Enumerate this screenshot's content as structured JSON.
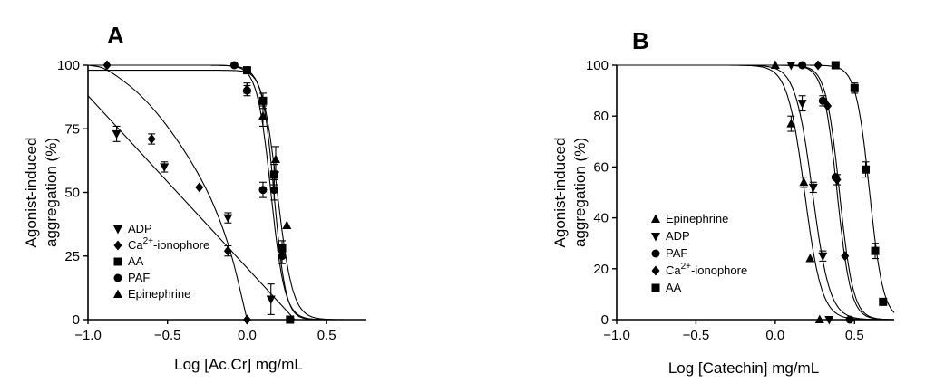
{
  "chart_data": [
    {
      "panel": "A",
      "type": "scatter",
      "xlabel": "Log [Ac.Cr] mg/mL",
      "ylabel": [
        "Agonist-induced",
        "aggregation (%)"
      ],
      "xlim": [
        -1.0,
        0.75
      ],
      "ylim": [
        0,
        100
      ],
      "xticks": [
        -1.0,
        -0.5,
        0.0,
        0.5
      ],
      "xtick_labels": [
        "−1.0",
        "−0.5",
        "0.0",
        "0.5"
      ],
      "yticks": [
        0,
        25,
        50,
        75,
        100
      ],
      "ytick_labels": [
        "0",
        "25",
        "50",
        "75",
        "100"
      ],
      "legend_position": "bottom-left",
      "series": [
        {
          "name": "ADP",
          "marker": "triangle-down",
          "x": [
            -0.82,
            -0.52,
            -0.12,
            0.15
          ],
          "y": [
            73,
            60,
            40,
            8
          ],
          "err": [
            3,
            2,
            2,
            6
          ],
          "curve": {
            "type": "line",
            "x": [
              -1.0,
              0.3
            ],
            "y": [
              88,
              0
            ]
          }
        },
        {
          "name": "Ca2+-ionophore",
          "name_parts": [
            "Ca",
            "2+",
            "-ionophore"
          ],
          "marker": "diamond",
          "x": [
            -0.88,
            -0.6,
            -0.3,
            -0.12,
            0.0
          ],
          "y": [
            100,
            71,
            52,
            27,
            0
          ],
          "err": [
            0,
            2,
            0,
            2,
            0
          ],
          "curve": {
            "type": "poly",
            "x": [
              -1.0,
              -0.88,
              -0.6,
              -0.3,
              -0.12,
              0.0
            ],
            "y": [
              100,
              99,
              85,
              58,
              32,
              0
            ]
          }
        },
        {
          "name": "AA",
          "marker": "square",
          "x": [
            0.0,
            0.1,
            0.17,
            0.22,
            0.27
          ],
          "y": [
            98,
            86,
            57,
            28,
            0
          ],
          "err": [
            0,
            3,
            4,
            3,
            0
          ],
          "curve": {
            "type": "sigmoid",
            "top": 98,
            "bottom": 0,
            "logec50": 0.17,
            "hill": 12
          }
        },
        {
          "name": "PAF",
          "marker": "circle",
          "x": [
            -0.08,
            0.0,
            0.1,
            0.17,
            0.22
          ],
          "y": [
            100,
            90,
            51,
            51,
            25
          ],
          "err": [
            0,
            2,
            3,
            4,
            3
          ],
          "curve": {
            "type": "sigmoid",
            "top": 100,
            "bottom": 0,
            "logec50": 0.15,
            "hill": 10
          }
        },
        {
          "name": "Epinephrine",
          "marker": "triangle-up",
          "x": [
            0.0,
            0.1,
            0.18,
            0.25
          ],
          "y": [
            91,
            80,
            63,
            37
          ],
          "err": [
            2,
            4,
            5,
            0
          ],
          "curve": {
            "type": "sigmoid",
            "top": 100,
            "bottom": 0,
            "logec50": 0.19,
            "hill": 9
          }
        }
      ]
    },
    {
      "panel": "B",
      "type": "scatter",
      "xlabel": "Log [Catechin] mg/mL",
      "ylabel": [
        "Agonist-induced",
        "aggregation (%)"
      ],
      "xlim": [
        -1.0,
        0.75
      ],
      "ylim": [
        0,
        100
      ],
      "xticks": [
        -1.0,
        -0.5,
        0.0,
        0.5
      ],
      "xtick_labels": [
        "−1.0",
        "−0.5",
        "0.0",
        "0.5"
      ],
      "yticks": [
        0,
        20,
        40,
        60,
        80,
        100
      ],
      "ytick_labels": [
        "0",
        "20",
        "40",
        "60",
        "80",
        "100"
      ],
      "legend_position": "bottom-left",
      "series": [
        {
          "name": "Epinephrine",
          "marker": "triangle-up",
          "x": [
            0.0,
            0.1,
            0.18,
            0.22,
            0.28
          ],
          "y": [
            100,
            77,
            54,
            24,
            0
          ],
          "err": [
            0,
            3,
            2,
            0,
            0
          ],
          "curve": {
            "type": "sigmoid",
            "top": 100,
            "bottom": 0,
            "logec50": 0.185,
            "hill": 8
          }
        },
        {
          "name": "ADP",
          "marker": "triangle-down",
          "x": [
            0.1,
            0.17,
            0.24,
            0.3,
            0.34
          ],
          "y": [
            100,
            85,
            52,
            25,
            0
          ],
          "err": [
            0,
            3,
            2,
            2,
            0
          ],
          "curve": {
            "type": "sigmoid",
            "top": 100,
            "bottom": 0,
            "logec50": 0.235,
            "hill": 8
          }
        },
        {
          "name": "PAF",
          "marker": "circle",
          "x": [
            0.17,
            0.3,
            0.38,
            0.47
          ],
          "y": [
            100,
            86,
            56,
            0
          ],
          "err": [
            0,
            2,
            0,
            0
          ],
          "curve": {
            "type": "sigmoid",
            "top": 100,
            "bottom": 0,
            "logec50": 0.39,
            "hill": 10
          }
        },
        {
          "name": "Ca2+-ionophore",
          "name_parts": [
            "Ca",
            "2+",
            "-ionophore"
          ],
          "marker": "diamond",
          "x": [
            0.27,
            0.33,
            0.39,
            0.44
          ],
          "y": [
            100,
            84,
            55,
            25
          ],
          "err": [
            0,
            0,
            2,
            0
          ],
          "curve": {
            "type": "sigmoid",
            "top": 100,
            "bottom": 0,
            "logec50": 0.405,
            "hill": 10
          }
        },
        {
          "name": "AA",
          "marker": "square",
          "x": [
            0.38,
            0.5,
            0.57,
            0.63,
            0.68
          ],
          "y": [
            100,
            91,
            59,
            27,
            7
          ],
          "err": [
            0,
            2,
            3,
            3,
            0
          ],
          "curve": {
            "type": "sigmoid",
            "top": 100,
            "bottom": 0,
            "logec50": 0.595,
            "hill": 10
          }
        }
      ]
    }
  ]
}
